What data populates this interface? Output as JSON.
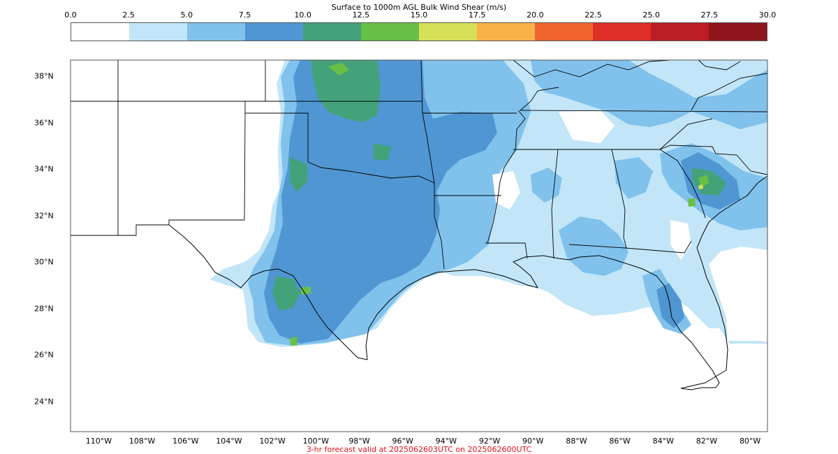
{
  "title": "Surface to 1000m AGL Bulk Wind Shear (m/s)",
  "footer": "3-hr forecast valid at 2025062603UTC on 2025062600UTC",
  "footer_color": "#e8111a",
  "colorbar": {
    "ticks": [
      "0.0",
      "2.5",
      "5.0",
      "7.5",
      "10.0",
      "12.5",
      "15.0",
      "17.5",
      "20.0",
      "22.5",
      "25.0",
      "27.5",
      "30.0"
    ],
    "colors": [
      "#ffffff",
      "#c2e6f8",
      "#80c2ec",
      "#5096d2",
      "#44a27a",
      "#68c046",
      "#d6e056",
      "#f8b148",
      "#f06430",
      "#de2f28",
      "#bc1c24",
      "#8e151b"
    ]
  },
  "lat_labels": [
    "38°N",
    "36°N",
    "34°N",
    "32°N",
    "30°N",
    "28°N",
    "26°N",
    "24°N"
  ],
  "lon_labels": [
    "110°W",
    "108°W",
    "106°W",
    "104°W",
    "102°W",
    "100°W",
    "98°W",
    "96°W",
    "94°W",
    "92°W",
    "90°W",
    "88°W",
    "86°W",
    "84°W",
    "82°W",
    "80°W"
  ],
  "map_extent": {
    "lon": [
      -111.3,
      -79.2
    ],
    "lat": [
      22.7,
      38.7
    ]
  }
}
